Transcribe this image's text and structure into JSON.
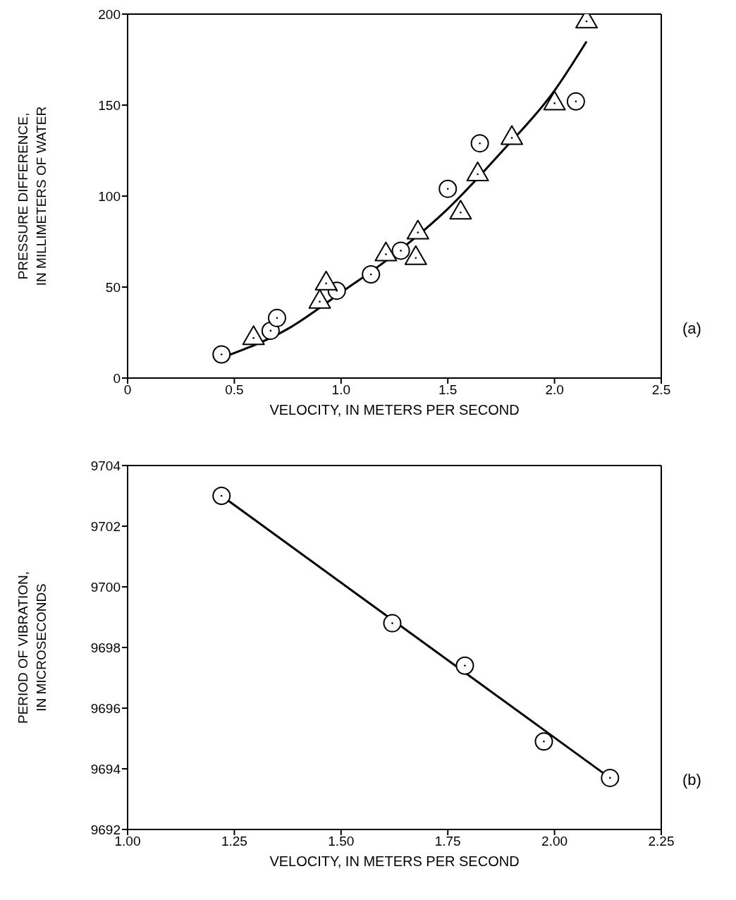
{
  "chart_data": [
    {
      "type": "scatter",
      "xlabel": "VELOCITY, IN  METERS PER SECOND",
      "ylabel": "PRESSURE DIFFERENCE,\nIN MILLIMETERS OF WATER",
      "xlim": [
        0,
        2.5
      ],
      "xticks": [
        0,
        0.5,
        {
          "value": 1,
          "label": "1.0"
        },
        1.5,
        {
          "value": 2,
          "label": "2.0"
        },
        2.5
      ],
      "ylim": [
        0,
        200
      ],
      "yticks": [
        0,
        50,
        100,
        150,
        200
      ],
      "annotations": [
        "(a)"
      ],
      "series": [
        {
          "marker": "circle",
          "color": "#000000",
          "x": [
            0.44,
            0.67,
            0.7,
            0.98,
            1.14,
            1.28,
            1.5,
            1.65,
            2.1
          ],
          "values": [
            13,
            26,
            33,
            48,
            57,
            70,
            104,
            129,
            152
          ]
        },
        {
          "marker": "triangle",
          "color": "#000000",
          "x": [
            0.59,
            0.9,
            0.93,
            1.21,
            1.35,
            1.36,
            1.56,
            1.64,
            1.8,
            2.0,
            2.15
          ],
          "values": [
            22,
            42,
            52,
            68,
            66,
            80,
            91,
            112,
            132,
            151,
            196
          ]
        },
        {
          "type": "line",
          "marker": "none",
          "color": "#000000",
          "x": [
            0.46,
            0.75,
            1.0,
            1.25,
            1.5,
            1.75,
            2.0,
            2.15
          ],
          "values": [
            12,
            27,
            47,
            68,
            93,
            124,
            158,
            185
          ]
        }
      ]
    },
    {
      "type": "scatter",
      "xlabel": "VELOCITY, IN  METERS PER SECOND",
      "ylabel": "PERIOD OF VIBRATION,\nIN MICROSECONDS",
      "xlim": [
        1,
        2.25
      ],
      "xticks": [
        {
          "value": 1,
          "label": "1.00"
        },
        1.25,
        {
          "value": 1.5,
          "label": "1.50"
        },
        1.75,
        {
          "value": 2,
          "label": "2.00"
        },
        2.25
      ],
      "ylim": [
        9692,
        9704
      ],
      "yticks": [
        9692,
        9694,
        9696,
        9698,
        9700,
        9702,
        9704
      ],
      "annotations": [
        "(b)"
      ],
      "series": [
        {
          "marker": "circle",
          "color": "#000000",
          "x": [
            1.22,
            1.62,
            1.79,
            1.975,
            2.13
          ],
          "values": [
            9703.0,
            9698.8,
            9697.4,
            9694.9,
            9693.7
          ]
        },
        {
          "type": "line",
          "marker": "none",
          "color": "#000000",
          "x": [
            1.23,
            2.12
          ],
          "values": [
            9702.9,
            9693.8
          ]
        }
      ]
    }
  ]
}
